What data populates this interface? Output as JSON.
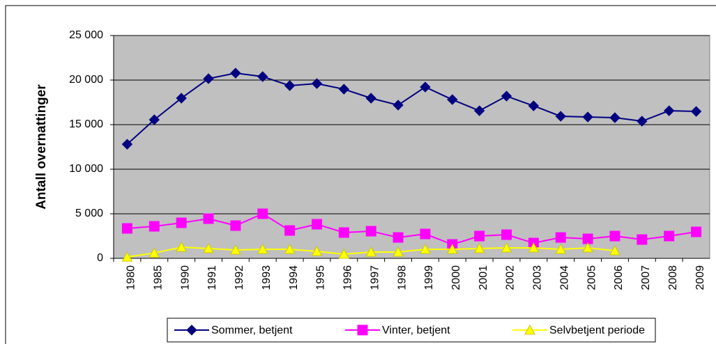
{
  "chart_data": {
    "type": "line",
    "ylabel": "Antall overnattinger",
    "categories": [
      "1980",
      "1985",
      "1990",
      "1991",
      "1992",
      "1993",
      "1994",
      "1995",
      "1996",
      "1997",
      "1998",
      "1999",
      "2000",
      "2001",
      "2002",
      "2003",
      "2004",
      "2005",
      "2006",
      "2007",
      "2008",
      "2009"
    ],
    "series": [
      {
        "name": "Sommer, betjent",
        "color": "#000080",
        "marker": "diamond",
        "values": [
          12800,
          15550,
          17970,
          20160,
          20780,
          20390,
          19375,
          19610,
          18980,
          17970,
          17190,
          19220,
          17810,
          16560,
          18200,
          17110,
          15940,
          15860,
          15780,
          15390,
          16560,
          16480
        ]
      },
      {
        "name": "Vinter, betjent",
        "color": "#ff00ff",
        "marker": "square",
        "values": [
          3360,
          3590,
          3980,
          4450,
          3670,
          5000,
          3125,
          3830,
          2890,
          3050,
          2340,
          2730,
          1560,
          2500,
          2660,
          1720,
          2340,
          2190,
          2500,
          2110,
          2500,
          2970
        ]
      },
      {
        "name": "Selvbetjent periode",
        "color": "#ffff00",
        "marker": "triangle",
        "values": [
          150,
          600,
          1250,
          1100,
          940,
          1020,
          1020,
          780,
          470,
          700,
          700,
          1020,
          1020,
          1100,
          1170,
          1170,
          1020,
          1170,
          860,
          null,
          null,
          null
        ]
      }
    ],
    "ylim": [
      0,
      25000
    ],
    "yticks": [
      0,
      {
        "value": 5000,
        "label": "5 000"
      },
      {
        "value": 10000,
        "label": "10 000"
      },
      {
        "value": 15000,
        "label": "15 000"
      },
      {
        "value": 20000,
        "label": "20 000"
      },
      {
        "value": 25000,
        "label": "25 000"
      }
    ],
    "grid": true,
    "legend": "bottom"
  }
}
